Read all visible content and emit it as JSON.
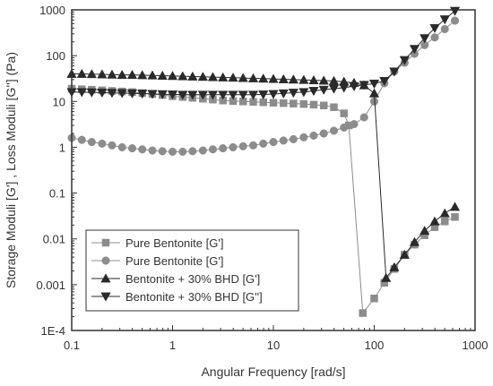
{
  "chart_data": {
    "type": "scatter",
    "xlabel": "Angular Frequency [rad/s]",
    "ylabel": "Storage Moduli [G'] ,  Loss Moduli [G''] (Pa)",
    "xscale": "log",
    "yscale": "log",
    "xlim": [
      0.1,
      1000
    ],
    "ylim": [
      0.0001,
      1000
    ],
    "x_ticks": [
      0.1,
      1,
      10,
      100,
      1000
    ],
    "x_tick_labels": [
      "0.1",
      "1",
      "10",
      "100",
      "1000"
    ],
    "y_ticks": [
      0.0001,
      0.001,
      0.01,
      0.1,
      1,
      10,
      100,
      1000
    ],
    "y_tick_labels": [
      "1E-4",
      "0.001",
      "0.01",
      "0.1",
      "1",
      "10",
      "100",
      "1000"
    ],
    "grid": false,
    "legend_position": "bottom-left",
    "series": [
      {
        "name": "Pure Bentonite [G']",
        "marker": "square",
        "color": "#8c8c8c",
        "x": [
          0.1,
          0.126,
          0.158,
          0.2,
          0.251,
          0.316,
          0.398,
          0.501,
          0.631,
          0.794,
          1.0,
          1.26,
          1.58,
          2.0,
          2.51,
          3.16,
          3.98,
          5.01,
          6.31,
          7.94,
          10.0,
          12.6,
          15.8,
          20.0,
          25.1,
          31.6,
          39.8,
          50.1,
          56.0,
          77.0,
          100.0,
          126.0,
          158.0,
          200.0,
          251.0,
          316.0,
          398.0,
          501.0,
          631.0
        ],
        "y": [
          19,
          18.5,
          18,
          17.5,
          17,
          16.5,
          16,
          15.2,
          14.5,
          13.8,
          13,
          12.5,
          12,
          11.5,
          11,
          10.5,
          10.2,
          10,
          9.8,
          9.6,
          9.4,
          9.2,
          9.0,
          8.8,
          8.5,
          8.2,
          7.5,
          5.5,
          3.0,
          0.00024,
          0.0005,
          0.0011,
          0.0022,
          0.0045,
          0.0075,
          0.012,
          0.018,
          0.024,
          0.03
        ]
      },
      {
        "name": "Pure Bentonite [G']",
        "marker": "circle",
        "color": "#8c8c8c",
        "x": [
          0.1,
          0.126,
          0.158,
          0.2,
          0.251,
          0.316,
          0.398,
          0.501,
          0.631,
          0.794,
          1.0,
          1.26,
          1.58,
          2.0,
          2.51,
          3.16,
          3.98,
          5.01,
          6.31,
          7.94,
          10.0,
          12.6,
          15.8,
          20.0,
          25.1,
          31.6,
          39.8,
          50.1,
          63.1,
          79.4,
          100.0,
          126.0,
          158.0,
          200.0,
          251.0,
          316.0,
          398.0,
          501.0,
          631.0
        ],
        "y": [
          1.6,
          1.45,
          1.3,
          1.2,
          1.1,
          1.0,
          0.95,
          0.9,
          0.85,
          0.82,
          0.8,
          0.8,
          0.82,
          0.85,
          0.9,
          0.95,
          1.0,
          1.05,
          1.1,
          1.2,
          1.3,
          1.4,
          1.5,
          1.65,
          1.8,
          2.0,
          2.3,
          2.7,
          3.2,
          4.5,
          10,
          25,
          45,
          70,
          110,
          170,
          250,
          380,
          580
        ]
      },
      {
        "name": "Bentonite + 30% BHD [G']",
        "marker": "triangle-up",
        "color": "#2a2a2a",
        "x": [
          0.1,
          0.126,
          0.158,
          0.2,
          0.251,
          0.316,
          0.398,
          0.501,
          0.631,
          0.794,
          1.0,
          1.26,
          1.58,
          2.0,
          2.51,
          3.16,
          3.98,
          5.01,
          6.31,
          7.94,
          10.0,
          12.6,
          15.8,
          20.0,
          25.1,
          31.6,
          39.8,
          50.1,
          63.1,
          79.4,
          100.0,
          131.0,
          158.0,
          200.0,
          251.0,
          316.0,
          398.0,
          501.0,
          631.0
        ],
        "y": [
          40,
          40,
          39.5,
          39,
          38.5,
          38,
          38,
          37.5,
          37,
          36.5,
          36,
          35.5,
          35,
          34.5,
          34,
          33.5,
          33,
          32.5,
          32,
          31.5,
          31,
          30.5,
          30,
          29.5,
          29,
          28.5,
          28,
          27,
          25.5,
          22.5,
          15,
          0.0014,
          0.0024,
          0.0045,
          0.0085,
          0.015,
          0.024,
          0.036,
          0.05
        ]
      },
      {
        "name": "Bentonite + 30% BHD [G'']",
        "marker": "triangle-down",
        "color": "#2a2a2a",
        "x": [
          0.1,
          0.126,
          0.158,
          0.2,
          0.251,
          0.316,
          0.398,
          0.501,
          0.631,
          0.794,
          1.0,
          1.26,
          1.58,
          2.0,
          2.51,
          3.16,
          3.98,
          5.01,
          6.31,
          7.94,
          10.0,
          12.6,
          15.8,
          20.0,
          25.1,
          31.6,
          39.8,
          50.1,
          63.1,
          79.4,
          100.0,
          126.0,
          158.0,
          200.0,
          251.0,
          316.0,
          398.0,
          501.0,
          631.0
        ],
        "y": [
          16,
          16,
          15.8,
          15.6,
          15.4,
          15.2,
          15,
          14.8,
          14.6,
          14.4,
          14.2,
          14,
          14,
          14,
          14,
          14,
          14,
          14,
          14,
          14.2,
          14.5,
          15,
          15.5,
          16,
          17,
          18,
          19,
          20,
          21.5,
          23,
          24.5,
          28,
          45,
          80,
          140,
          240,
          400,
          620,
          950
        ]
      }
    ]
  }
}
